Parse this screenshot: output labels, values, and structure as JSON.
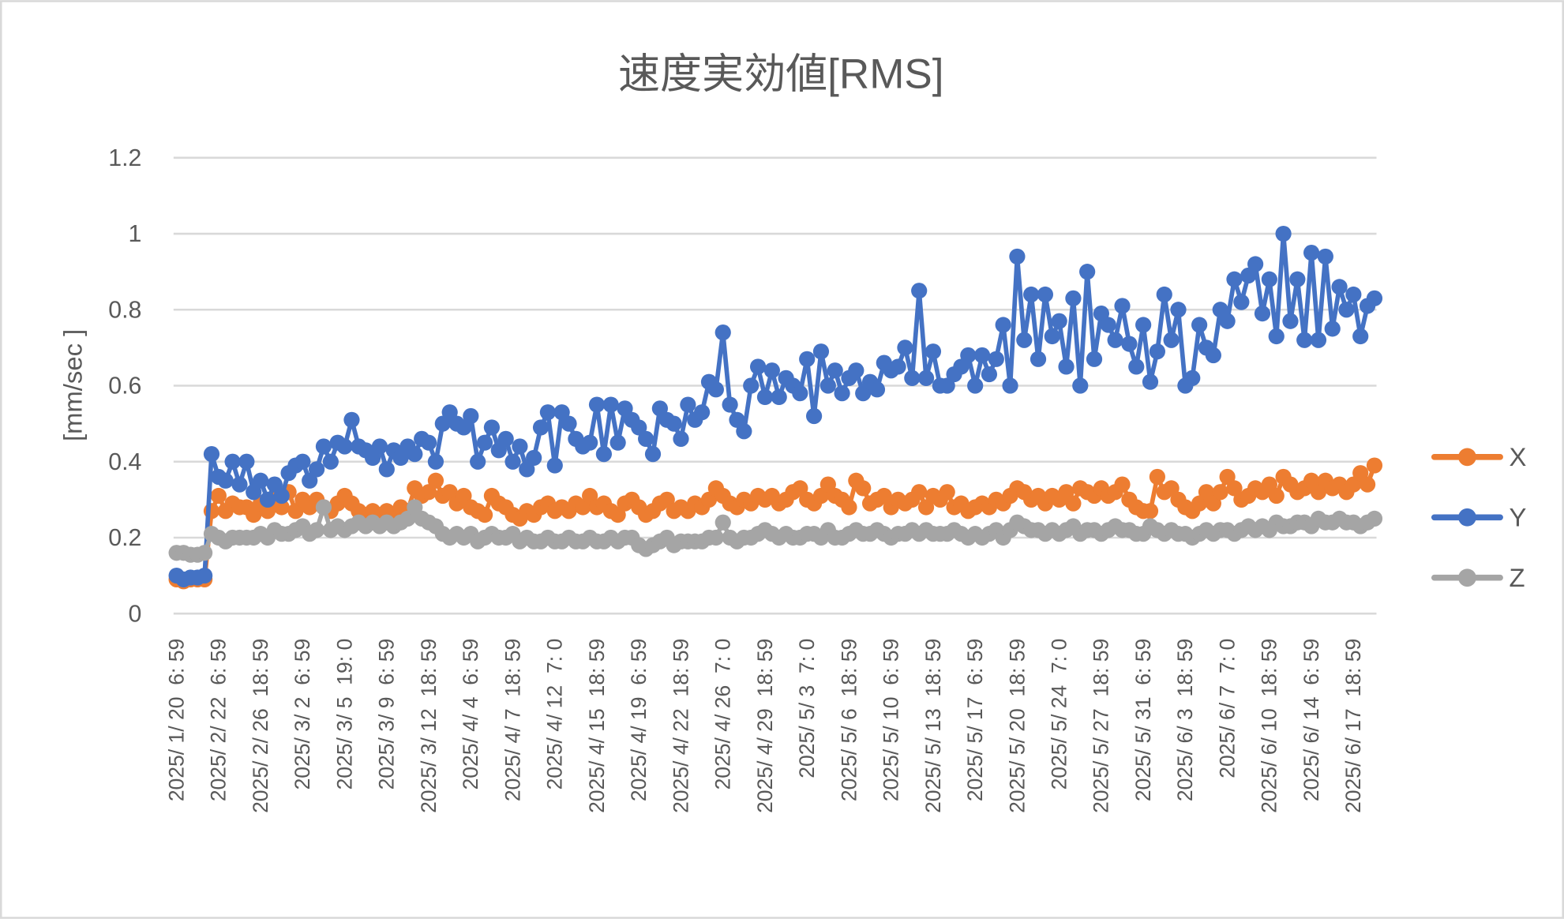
{
  "chart_data": {
    "type": "line",
    "title": "速度実効値[RMS]",
    "xlabel": "",
    "ylabel": "[mm/sec ]",
    "ylim": [
      0,
      1.2
    ],
    "yticks": [
      "0",
      "0.2",
      "0.4",
      "0.6",
      "0.8",
      "1",
      "1.2"
    ],
    "grid": true,
    "legend_position": "right",
    "x_tick_every": 6,
    "x_tick_labels": [
      "2025/ 1/ 20  6: 59",
      "2025/ 2/ 22  6: 59",
      "2025/ 2/ 26  18: 59",
      "2025/ 3/ 2  6: 59",
      "2025/ 3/ 5  19: 0",
      "2025/ 3/ 9  6: 59",
      "2025/ 3/ 12  18: 59",
      "2025/ 4/ 4  6: 59",
      "2025/ 4/ 7  18: 59",
      "2025/ 4/ 12  7: 0",
      "2025/ 4/ 15  18: 59",
      "2025/ 4/ 19  6: 59",
      "2025/ 4/ 22  18: 59",
      "2025/ 4/ 26  7: 0",
      "2025/ 4/ 29  18: 59",
      "2025/ 5/ 3  7: 0",
      "2025/ 5/ 6  18: 59",
      "2025/ 5/ 10  6: 59",
      "2025/ 5/ 13  18: 59",
      "2025/ 5/ 17  6: 59",
      "2025/ 5/ 20  18: 59",
      "2025/ 5/ 24  7: 0",
      "2025/ 5/ 27  18: 59",
      "2025/ 5/ 31  6: 59",
      "2025/ 6/ 3  18: 59",
      "2025/ 6/ 7  7: 0",
      "2025/ 6/ 10  18: 59",
      "2025/ 6/ 14  6: 59",
      "2025/ 6/ 17  18: 59"
    ],
    "series": [
      {
        "name": "X",
        "color": "#ED7D31",
        "values": [
          0.09,
          0.085,
          0.09,
          0.09,
          0.09,
          0.27,
          0.31,
          0.27,
          0.29,
          0.28,
          0.28,
          0.26,
          0.29,
          0.27,
          0.3,
          0.28,
          0.32,
          0.27,
          0.3,
          0.28,
          0.3,
          0.28,
          0.27,
          0.29,
          0.31,
          0.29,
          0.27,
          0.26,
          0.27,
          0.26,
          0.27,
          0.26,
          0.28,
          0.27,
          0.33,
          0.31,
          0.32,
          0.35,
          0.31,
          0.32,
          0.29,
          0.31,
          0.28,
          0.27,
          0.26,
          0.31,
          0.29,
          0.28,
          0.26,
          0.25,
          0.27,
          0.26,
          0.28,
          0.29,
          0.27,
          0.28,
          0.27,
          0.29,
          0.28,
          0.31,
          0.28,
          0.29,
          0.27,
          0.26,
          0.29,
          0.3,
          0.28,
          0.26,
          0.27,
          0.29,
          0.3,
          0.27,
          0.28,
          0.27,
          0.29,
          0.28,
          0.3,
          0.33,
          0.31,
          0.29,
          0.28,
          0.3,
          0.29,
          0.31,
          0.3,
          0.31,
          0.29,
          0.3,
          0.32,
          0.33,
          0.3,
          0.29,
          0.31,
          0.34,
          0.31,
          0.3,
          0.28,
          0.35,
          0.33,
          0.29,
          0.3,
          0.31,
          0.28,
          0.3,
          0.29,
          0.3,
          0.32,
          0.28,
          0.31,
          0.3,
          0.32,
          0.28,
          0.29,
          0.27,
          0.28,
          0.29,
          0.28,
          0.3,
          0.29,
          0.31,
          0.33,
          0.32,
          0.3,
          0.31,
          0.29,
          0.31,
          0.3,
          0.32,
          0.29,
          0.33,
          0.32,
          0.31,
          0.33,
          0.31,
          0.32,
          0.34,
          0.3,
          0.28,
          0.27,
          0.27,
          0.36,
          0.32,
          0.33,
          0.3,
          0.28,
          0.27,
          0.29,
          0.32,
          0.29,
          0.32,
          0.36,
          0.33,
          0.3,
          0.31,
          0.33,
          0.32,
          0.34,
          0.31,
          0.36,
          0.34,
          0.32,
          0.33,
          0.35,
          0.32,
          0.35,
          0.33,
          0.34,
          0.32,
          0.34,
          0.37,
          0.34,
          0.39
        ]
      },
      {
        "name": "Y",
        "color": "#4472C4",
        "values": [
          0.1,
          0.09,
          0.095,
          0.095,
          0.1,
          0.42,
          0.36,
          0.35,
          0.4,
          0.34,
          0.4,
          0.32,
          0.35,
          0.3,
          0.34,
          0.31,
          0.37,
          0.39,
          0.4,
          0.35,
          0.38,
          0.44,
          0.4,
          0.45,
          0.44,
          0.51,
          0.44,
          0.43,
          0.41,
          0.44,
          0.38,
          0.43,
          0.41,
          0.44,
          0.42,
          0.46,
          0.45,
          0.4,
          0.5,
          0.53,
          0.5,
          0.49,
          0.52,
          0.4,
          0.45,
          0.49,
          0.43,
          0.46,
          0.4,
          0.44,
          0.38,
          0.41,
          0.49,
          0.53,
          0.39,
          0.53,
          0.5,
          0.46,
          0.44,
          0.45,
          0.55,
          0.42,
          0.55,
          0.45,
          0.54,
          0.51,
          0.49,
          0.46,
          0.42,
          0.54,
          0.51,
          0.5,
          0.46,
          0.55,
          0.51,
          0.53,
          0.61,
          0.59,
          0.74,
          0.55,
          0.51,
          0.48,
          0.6,
          0.65,
          0.57,
          0.64,
          0.57,
          0.62,
          0.6,
          0.58,
          0.67,
          0.52,
          0.69,
          0.6,
          0.64,
          0.58,
          0.62,
          0.64,
          0.58,
          0.61,
          0.59,
          0.66,
          0.64,
          0.65,
          0.7,
          0.62,
          0.85,
          0.62,
          0.69,
          0.6,
          0.6,
          0.63,
          0.65,
          0.68,
          0.6,
          0.68,
          0.63,
          0.67,
          0.76,
          0.6,
          0.94,
          0.72,
          0.84,
          0.67,
          0.84,
          0.73,
          0.77,
          0.65,
          0.83,
          0.6,
          0.9,
          0.67,
          0.79,
          0.76,
          0.72,
          0.81,
          0.71,
          0.65,
          0.76,
          0.61,
          0.69,
          0.84,
          0.72,
          0.8,
          0.6,
          0.62,
          0.76,
          0.7,
          0.68,
          0.8,
          0.77,
          0.88,
          0.82,
          0.89,
          0.92,
          0.79,
          0.88,
          0.73,
          1.0,
          0.77,
          0.88,
          0.72,
          0.95,
          0.72,
          0.94,
          0.75,
          0.86,
          0.8,
          0.84,
          0.73,
          0.81,
          0.83
        ]
      },
      {
        "name": "Z",
        "color": "#A5A5A5",
        "values": [
          0.16,
          0.16,
          0.155,
          0.155,
          0.16,
          0.21,
          0.2,
          0.19,
          0.2,
          0.2,
          0.2,
          0.2,
          0.21,
          0.2,
          0.22,
          0.21,
          0.21,
          0.22,
          0.23,
          0.21,
          0.22,
          0.28,
          0.22,
          0.23,
          0.22,
          0.23,
          0.24,
          0.23,
          0.24,
          0.23,
          0.24,
          0.23,
          0.24,
          0.25,
          0.28,
          0.25,
          0.24,
          0.23,
          0.21,
          0.2,
          0.21,
          0.2,
          0.21,
          0.19,
          0.2,
          0.21,
          0.2,
          0.2,
          0.21,
          0.19,
          0.2,
          0.19,
          0.19,
          0.2,
          0.19,
          0.19,
          0.2,
          0.19,
          0.19,
          0.2,
          0.19,
          0.19,
          0.2,
          0.19,
          0.2,
          0.2,
          0.18,
          0.17,
          0.18,
          0.19,
          0.2,
          0.18,
          0.19,
          0.19,
          0.19,
          0.19,
          0.2,
          0.2,
          0.24,
          0.2,
          0.19,
          0.2,
          0.2,
          0.21,
          0.22,
          0.21,
          0.2,
          0.21,
          0.2,
          0.2,
          0.21,
          0.21,
          0.2,
          0.22,
          0.2,
          0.2,
          0.21,
          0.22,
          0.21,
          0.21,
          0.22,
          0.21,
          0.2,
          0.21,
          0.21,
          0.22,
          0.21,
          0.22,
          0.21,
          0.21,
          0.21,
          0.22,
          0.21,
          0.2,
          0.21,
          0.2,
          0.21,
          0.22,
          0.2,
          0.22,
          0.24,
          0.23,
          0.22,
          0.22,
          0.21,
          0.22,
          0.21,
          0.22,
          0.23,
          0.21,
          0.22,
          0.22,
          0.21,
          0.22,
          0.23,
          0.22,
          0.22,
          0.21,
          0.21,
          0.23,
          0.22,
          0.21,
          0.22,
          0.21,
          0.21,
          0.2,
          0.21,
          0.22,
          0.21,
          0.22,
          0.22,
          0.21,
          0.22,
          0.23,
          0.22,
          0.23,
          0.22,
          0.24,
          0.23,
          0.23,
          0.24,
          0.24,
          0.23,
          0.25,
          0.24,
          0.24,
          0.25,
          0.24,
          0.24,
          0.23,
          0.24,
          0.25
        ]
      }
    ]
  }
}
